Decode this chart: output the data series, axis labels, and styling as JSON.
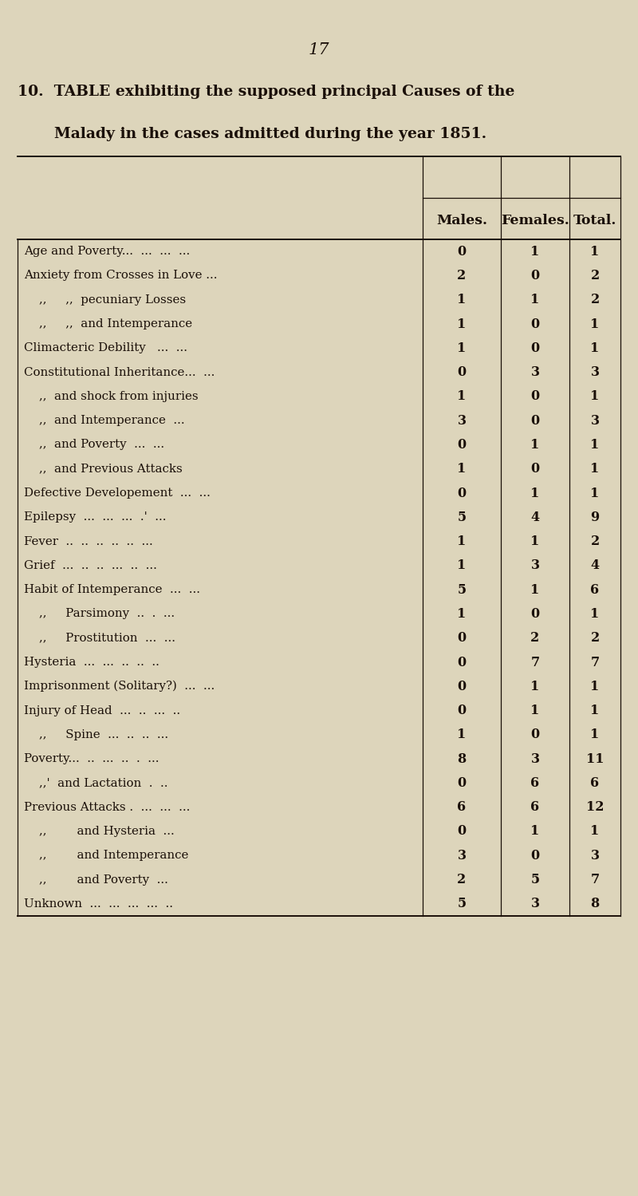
{
  "page_number": "17",
  "title_line1": "10.  TABLE exhibiting the supposed principal Causes of the",
  "title_line2": "Malady in the cases admitted during the year 1851.",
  "bg_color": "#ddd5bb",
  "text_color": "#1a0f08",
  "col_headers": [
    "Males.",
    "Females.",
    "Total."
  ],
  "rows": [
    [
      "Age and Poverty...  ...  ...  ...",
      "0",
      "1",
      "1"
    ],
    [
      "Anxiety from Crosses in Love ...",
      "2",
      "0",
      "2"
    ],
    [
      "    ,,     ,,  pecuniary Losses",
      "1",
      "1",
      "2"
    ],
    [
      "    ,,     ,,  and Intemperance",
      "1",
      "0",
      "1"
    ],
    [
      "Climacteric Debility   ...  ...",
      "1",
      "0",
      "1"
    ],
    [
      "Constitutional Inheritance...  ...",
      "0",
      "3",
      "3"
    ],
    [
      "    ,,  and shock from injuries",
      "1",
      "0",
      "1"
    ],
    [
      "    ,,  and Intemperance  ...",
      "3",
      "0",
      "3"
    ],
    [
      "    ,,  and Poverty  ...  ...",
      "0",
      "1",
      "1"
    ],
    [
      "    ,,  and Previous Attacks",
      "1",
      "0",
      "1"
    ],
    [
      "Defective Developement  ...  ...",
      "0",
      "1",
      "1"
    ],
    [
      "Epilepsy  ...  ...  ...  .'  ...",
      "5",
      "4",
      "9"
    ],
    [
      "Fever  ..  ..  ..  ..  ..  ...",
      "1",
      "1",
      "2"
    ],
    [
      "Grief  ...  ..  ..  ...  ..  ...",
      "1",
      "3",
      "4"
    ],
    [
      "Habit of Intemperance  ...  ...",
      "5",
      "1",
      "6"
    ],
    [
      "    ,,     Parsimony  ..  .  ...",
      "1",
      "0",
      "1"
    ],
    [
      "    ,,     Prostitution  ...  ...",
      "0",
      "2",
      "2"
    ],
    [
      "Hysteria  ...  ...  ..  ..  ..",
      "0",
      "7",
      "7"
    ],
    [
      "Imprisonment (Solitary?)  ...  ...",
      "0",
      "1",
      "1"
    ],
    [
      "Injury of Head  ...  ..  ...  ..",
      "0",
      "1",
      "1"
    ],
    [
      "    ,,     Spine  ...  ..  ..  ...",
      "1",
      "0",
      "1"
    ],
    [
      "Poverty...  ..  ...  ..  .  ...",
      "8",
      "3",
      "11"
    ],
    [
      "    ,,'  and Lactation  .  ..",
      "0",
      "6",
      "6"
    ],
    [
      "Previous Attacks .  ...  ...  ...",
      "6",
      "6",
      "12"
    ],
    [
      "    ,,        and Hysteria  ...",
      "0",
      "1",
      "1"
    ],
    [
      "    ,,        and Intemperance",
      "3",
      "0",
      "3"
    ],
    [
      "    ,,        and Poverty  ...",
      "2",
      "5",
      "7"
    ],
    [
      "Unknown  ...  ...  ...  ...  ..",
      "5",
      "3",
      "8"
    ]
  ]
}
